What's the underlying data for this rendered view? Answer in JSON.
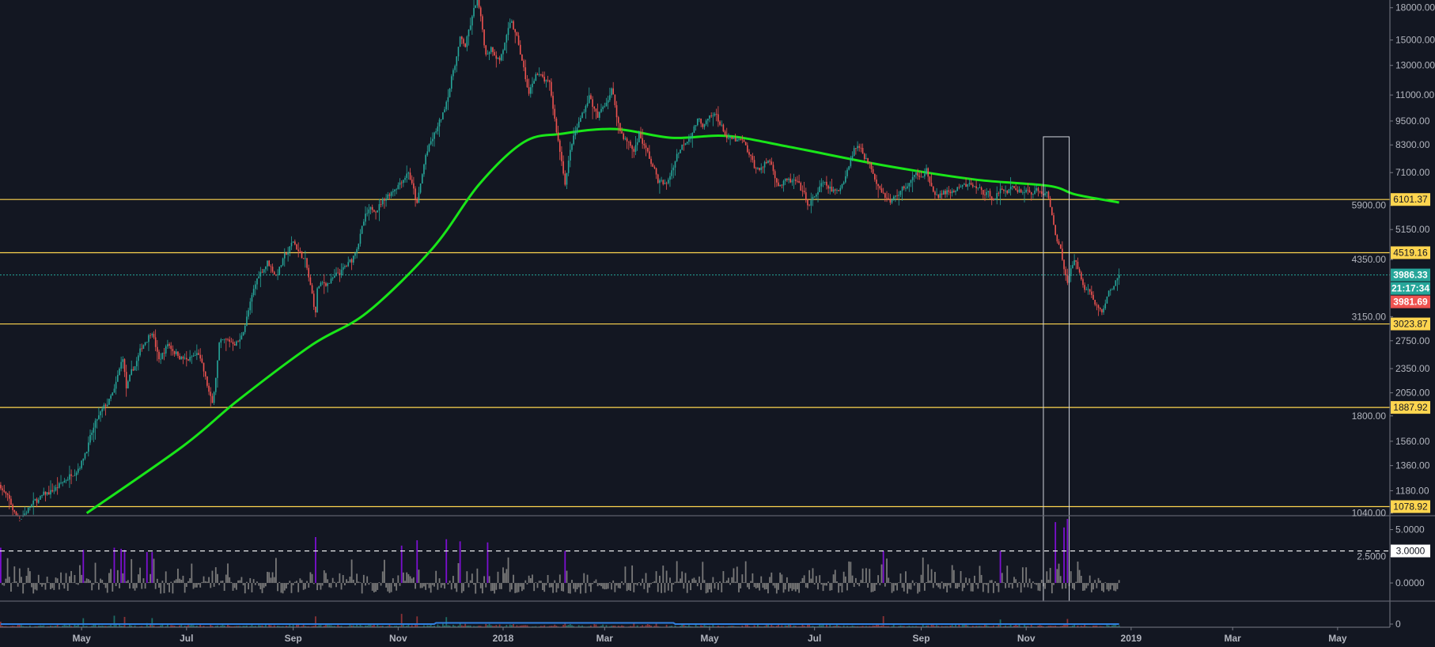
{
  "chart_data": {
    "type": "candlestick",
    "price_axis": {
      "scale": "log",
      "ylim": [
        1025,
        18800
      ],
      "ticks": [
        "18000.00",
        "15000.00",
        "13000.00",
        "11000.00",
        "9500.00",
        "8300.00",
        "7100.00",
        "5900.00",
        "5150.00",
        "4350.00",
        "3150.00",
        "2750.00",
        "2350.00",
        "2050.00",
        "1800.00",
        "1560.00",
        "1360.00",
        "1180.00",
        "1040.00"
      ]
    },
    "time_axis": {
      "xlim": [
        "2017-03-15",
        "2019-05-31"
      ],
      "labels": [
        {
          "date": "2017-05-01",
          "text": "May"
        },
        {
          "date": "2017-07-01",
          "text": "Jul"
        },
        {
          "date": "2017-09-01",
          "text": "Sep"
        },
        {
          "date": "2017-11-01",
          "text": "Nov"
        },
        {
          "date": "2018-01-01",
          "text": "2018"
        },
        {
          "date": "2018-03-01",
          "text": "Mar"
        },
        {
          "date": "2018-05-01",
          "text": "May"
        },
        {
          "date": "2018-07-01",
          "text": "Jul"
        },
        {
          "date": "2018-09-01",
          "text": "Sep"
        },
        {
          "date": "2018-11-01",
          "text": "Nov"
        },
        {
          "date": "2019-01-01",
          "text": "2019"
        },
        {
          "date": "2019-03-01",
          "text": "Mar"
        },
        {
          "date": "2019-05-01",
          "text": "May"
        }
      ]
    },
    "price_path": [
      [
        "2017-03-15",
        1220
      ],
      [
        "2017-03-25",
        1000
      ],
      [
        "2017-04-01",
        1080
      ],
      [
        "2017-04-20",
        1230
      ],
      [
        "2017-05-01",
        1400
      ],
      [
        "2017-05-10",
        1750
      ],
      [
        "2017-05-20",
        2050
      ],
      [
        "2017-05-25",
        2500
      ],
      [
        "2017-05-27",
        2100
      ],
      [
        "2017-06-06",
        2700
      ],
      [
        "2017-06-11",
        2950
      ],
      [
        "2017-06-15",
        2450
      ],
      [
        "2017-06-20",
        2700
      ],
      [
        "2017-07-01",
        2450
      ],
      [
        "2017-07-08",
        2550
      ],
      [
        "2017-07-16",
        1900
      ],
      [
        "2017-07-20",
        2700
      ],
      [
        "2017-08-01",
        2750
      ],
      [
        "2017-08-12",
        4000
      ],
      [
        "2017-08-17",
        4300
      ],
      [
        "2017-08-22",
        4000
      ],
      [
        "2017-09-01",
        4800
      ],
      [
        "2017-09-08",
        4300
      ],
      [
        "2017-09-14",
        3200
      ],
      [
        "2017-09-15",
        3700
      ],
      [
        "2017-09-25",
        3900
      ],
      [
        "2017-10-05",
        4300
      ],
      [
        "2017-10-13",
        5500
      ],
      [
        "2017-10-20",
        5900
      ],
      [
        "2017-11-01",
        6700
      ],
      [
        "2017-11-07",
        7200
      ],
      [
        "2017-11-12",
        5900
      ],
      [
        "2017-11-17",
        7800
      ],
      [
        "2017-11-27",
        9800
      ],
      [
        "2017-12-07",
        15000
      ],
      [
        "2017-12-10",
        14500
      ],
      [
        "2017-12-17",
        19000
      ],
      [
        "2017-12-22",
        13800
      ],
      [
        "2017-12-25",
        14500
      ],
      [
        "2017-12-30",
        13500
      ],
      [
        "2018-01-06",
        16500
      ],
      [
        "2018-01-10",
        14500
      ],
      [
        "2018-01-16",
        11000
      ],
      [
        "2018-01-20",
        12500
      ],
      [
        "2018-01-28",
        11500
      ],
      [
        "2018-02-01",
        9000
      ],
      [
        "2018-02-06",
        6800
      ],
      [
        "2018-02-10",
        8400
      ],
      [
        "2018-02-20",
        11000
      ],
      [
        "2018-02-25",
        9600
      ],
      [
        "2018-03-05",
        11400
      ],
      [
        "2018-03-10",
        9000
      ],
      [
        "2018-03-18",
        8000
      ],
      [
        "2018-03-21",
        8900
      ],
      [
        "2018-04-01",
        6800
      ],
      [
        "2018-04-06",
        6600
      ],
      [
        "2018-04-12",
        7900
      ],
      [
        "2018-04-24",
        9500
      ],
      [
        "2018-04-28",
        9300
      ],
      [
        "2018-05-05",
        9800
      ],
      [
        "2018-05-12",
        8500
      ],
      [
        "2018-05-20",
        8400
      ],
      [
        "2018-05-28",
        7200
      ],
      [
        "2018-06-05",
        7600
      ],
      [
        "2018-06-10",
        6700
      ],
      [
        "2018-06-20",
        6700
      ],
      [
        "2018-06-28",
        5900
      ],
      [
        "2018-07-05",
        6600
      ],
      [
        "2018-07-15",
        6300
      ],
      [
        "2018-07-24",
        8200
      ],
      [
        "2018-07-28",
        8200
      ],
      [
        "2018-08-05",
        7000
      ],
      [
        "2018-08-14",
        6000
      ],
      [
        "2018-08-20",
        6400
      ],
      [
        "2018-09-04",
        7300
      ],
      [
        "2018-09-08",
        6200
      ],
      [
        "2018-09-20",
        6400
      ],
      [
        "2018-10-01",
        6600
      ],
      [
        "2018-10-11",
        6200
      ],
      [
        "2018-10-20",
        6500
      ],
      [
        "2018-11-05",
        6400
      ],
      [
        "2018-11-13",
        6300
      ],
      [
        "2018-11-19",
        4900
      ],
      [
        "2018-11-25",
        3900
      ],
      [
        "2018-11-29",
        4300
      ],
      [
        "2018-12-05",
        3800
      ],
      [
        "2018-12-15",
        3200
      ],
      [
        "2018-12-18",
        3500
      ],
      [
        "2018-12-25",
        3986.33
      ]
    ],
    "moving_average": [
      [
        "2017-05-04",
        1040
      ],
      [
        "2017-06-29",
        1518
      ],
      [
        "2017-07-31",
        1967
      ],
      [
        "2017-09-12",
        2688
      ],
      [
        "2017-10-14",
        3227
      ],
      [
        "2017-11-21",
        4630
      ],
      [
        "2017-12-18",
        6640
      ],
      [
        "2018-01-13",
        8430
      ],
      [
        "2018-02-04",
        8840
      ],
      [
        "2018-03-07",
        9080
      ],
      [
        "2018-04-09",
        8640
      ],
      [
        "2018-05-11",
        8730
      ],
      [
        "2018-06-17",
        8200
      ],
      [
        "2018-08-10",
        7400
      ],
      [
        "2018-10-02",
        6830
      ],
      [
        "2018-11-14",
        6590
      ],
      [
        "2018-11-30",
        6270
      ],
      [
        "2018-12-25",
        6000
      ]
    ],
    "levels": [
      {
        "value": 6101.37,
        "label": "6101.37"
      },
      {
        "value": 4519.16,
        "label": "4519.16"
      },
      {
        "value": 3023.87,
        "label": "3023.87"
      },
      {
        "value": 1887.92,
        "label": "1887.92"
      },
      {
        "value": 1078.92,
        "label": "1078.92"
      }
    ],
    "last_price": {
      "value": 3986.33,
      "label": "3986.33",
      "countdown": "21:17:34",
      "secondary_label": "3981.69"
    },
    "highlight_box": {
      "from": "2018-11-11",
      "to": "2018-11-26",
      "top_price": 8690
    },
    "indicator": {
      "ylim": [
        -1.7,
        6.3
      ],
      "ticks": [
        "5.0000",
        "2.5000",
        "0.0000"
      ],
      "threshold": {
        "value": 3,
        "label": "3.0000"
      },
      "spikes": [
        [
          "2017-03-15",
          3.3
        ],
        [
          "2017-05-02",
          3.1
        ],
        [
          "2017-05-20",
          3.3
        ],
        [
          "2017-05-24",
          3.2
        ],
        [
          "2017-05-26",
          3.1
        ],
        [
          "2017-06-08",
          2.9
        ],
        [
          "2017-06-11",
          2.9
        ],
        [
          "2017-09-14",
          4.3
        ],
        [
          "2017-11-03",
          3.5
        ],
        [
          "2017-11-12",
          4.0
        ],
        [
          "2017-11-29",
          4.1
        ],
        [
          "2017-12-07",
          3.9
        ],
        [
          "2017-12-23",
          3.8
        ],
        [
          "2018-02-06",
          3.0
        ],
        [
          "2018-08-10",
          3.0
        ],
        [
          "2018-10-17",
          3.0
        ],
        [
          "2018-11-18",
          5.7
        ],
        [
          "2018-11-23",
          5.2
        ],
        [
          "2018-11-25",
          6.0
        ]
      ]
    },
    "volume": {
      "ticks": [
        "0"
      ]
    },
    "colors": {
      "background": "#131722",
      "up": "#26a69a",
      "down": "#ef5350",
      "moving_average": "#19e619",
      "level": "#ffd54f",
      "histogram": "#787878",
      "histogram_spike": "#7b0fd0",
      "volume_line": "#2f7fe0",
      "box": "#d1d4dc"
    }
  }
}
